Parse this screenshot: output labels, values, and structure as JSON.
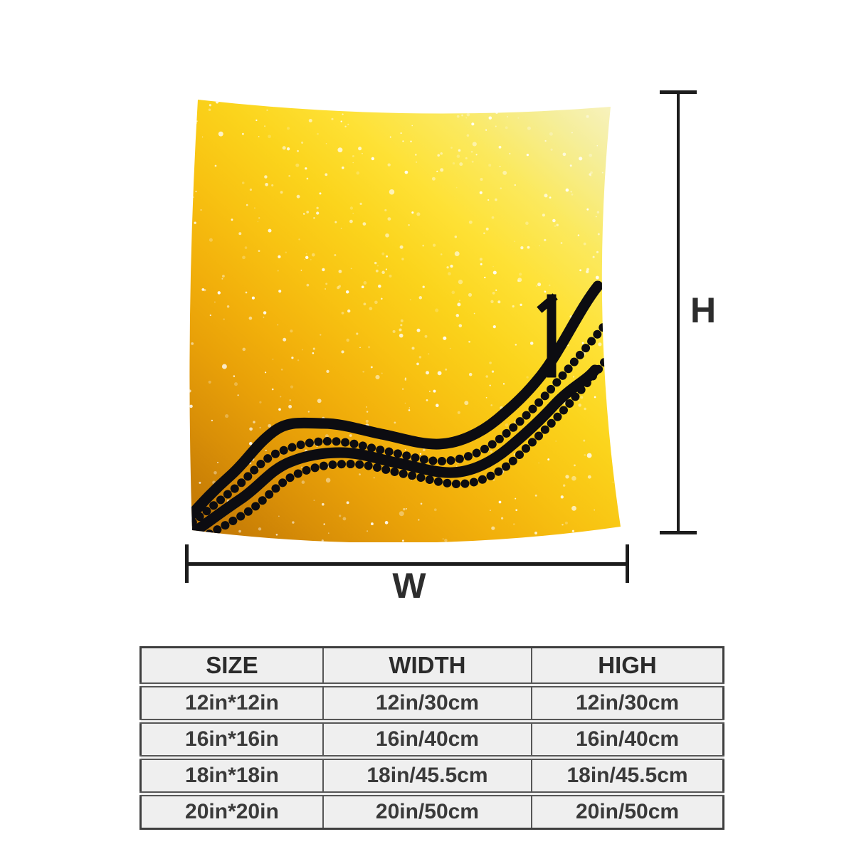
{
  "page": {
    "background_color": "#ffffff",
    "description": "Product size diagram of a square throw pillow with measurement lines and size table"
  },
  "pillow": {
    "name": "yellow glitter pillow with black wavy chain applique",
    "gradient_top_right": "#f8f3c6",
    "gradient_center": "#f8c312",
    "gradient_bottom_left": "#c67c06",
    "speckle_color": "#ffffff",
    "strand_color": "#0c0c11"
  },
  "dimensions": {
    "height_label": "H",
    "width_label": "W",
    "line_color": "#1c1c1c"
  },
  "size_table": {
    "headers": [
      "SIZE",
      "WIDTH",
      "HIGH"
    ],
    "rows": [
      [
        "12in*12in",
        "12in/30cm",
        "12in/30cm"
      ],
      [
        "16in*16in",
        "16in/40cm",
        "16in/40cm"
      ],
      [
        "18in*18in",
        "18in/45.5cm",
        "18in/45.5cm"
      ],
      [
        "20in*20in",
        "20in/50cm",
        "20in/50cm"
      ]
    ],
    "cell_background": "#efefef",
    "border_color": "#565656",
    "header_text_color": "#2b2b2b",
    "cell_text_color": "#3a3a3a"
  }
}
